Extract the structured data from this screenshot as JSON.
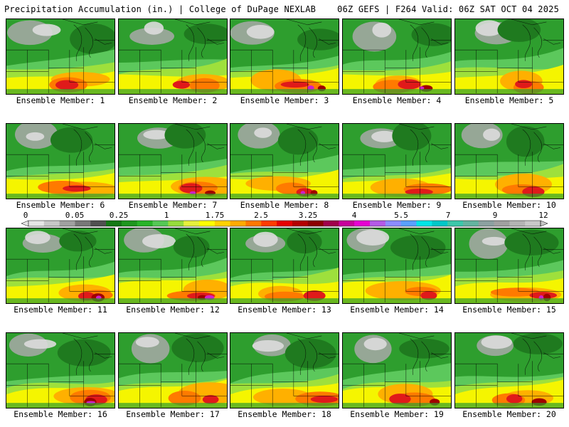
{
  "header": {
    "left_title": "Precipitation Accumulation (in.) | College of DuPage NEXLAB",
    "right_title": "06Z GEFS | F264 Valid: 06Z SAT OCT 04 2025"
  },
  "panels": [
    {
      "label": "Ensemble Member: 1",
      "member": 1
    },
    {
      "label": "Ensemble Member: 2",
      "member": 2
    },
    {
      "label": "Ensemble Member: 3",
      "member": 3
    },
    {
      "label": "Ensemble Member: 4",
      "member": 4
    },
    {
      "label": "Ensemble Member: 5",
      "member": 5
    },
    {
      "label": "Ensemble Member: 6",
      "member": 6
    },
    {
      "label": "Ensemble Member: 7",
      "member": 7
    },
    {
      "label": "Ensemble Member: 8",
      "member": 8
    },
    {
      "label": "Ensemble Member: 9",
      "member": 9
    },
    {
      "label": "Ensemble Member: 10",
      "member": 10
    },
    {
      "label": "Ensemble Member: 11",
      "member": 11
    },
    {
      "label": "Ensemble Member: 12",
      "member": 12
    },
    {
      "label": "Ensemble Member: 13",
      "member": 13
    },
    {
      "label": "Ensemble Member: 14",
      "member": 14
    },
    {
      "label": "Ensemble Member: 15",
      "member": 15
    },
    {
      "label": "Ensemble Member: 16",
      "member": 16
    },
    {
      "label": "Ensemble Member: 17",
      "member": 17
    },
    {
      "label": "Ensemble Member: 18",
      "member": 18
    },
    {
      "label": "Ensemble Member: 19",
      "member": 19
    },
    {
      "label": "Ensemble Member: 20",
      "member": 20
    }
  ],
  "colorbar": {
    "labels": [
      "0",
      "0.05",
      "0.25",
      "1",
      "1.75",
      "2.5",
      "3.25",
      "4",
      "5.5",
      "7",
      "9",
      "12"
    ],
    "colors": [
      "#e6e6e6",
      "#c8c8c8",
      "#a0a0a0",
      "#787878",
      "#505050",
      "#147814",
      "#1e961e",
      "#28b428",
      "#55c855",
      "#96dc3c",
      "#e6f03c",
      "#ffff00",
      "#ffd200",
      "#ffaa00",
      "#ff7800",
      "#ff3c00",
      "#e60000",
      "#b40000",
      "#8c0000",
      "#a0004b",
      "#c8009b",
      "#e600d2",
      "#b45ae6",
      "#8c8cff",
      "#5aa0ff",
      "#00e6e6",
      "#00c8c8",
      "#3cc8aa",
      "#64b4a0",
      "#8ca0a0",
      "#a0a0a0",
      "#b4b4b4",
      "#c8c8c8"
    ]
  }
}
